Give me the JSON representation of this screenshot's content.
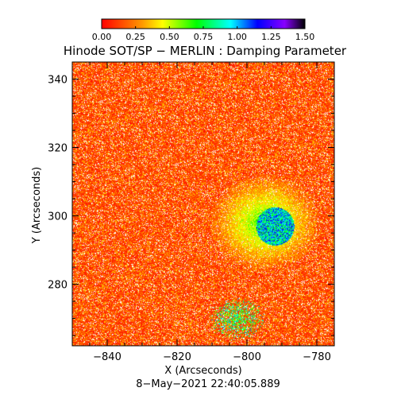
{
  "chart_data": {
    "type": "heatmap",
    "title": "Hinode SOT/SP − MERLIN : Damping Parameter",
    "xlabel": "X (Arcseconds)",
    "ylabel": "Y (Arcseconds)",
    "timestamp": "8−May−2021 22:40:05.889",
    "xlim": [
      -850,
      -775
    ],
    "ylim": [
      262,
      345
    ],
    "x_ticks": [
      -840,
      -820,
      -800,
      -780
    ],
    "x_tick_labels": [
      "−840",
      "−820",
      "−800",
      "−780"
    ],
    "y_ticks": [
      280,
      300,
      320,
      340
    ],
    "y_tick_labels": [
      "280",
      "300",
      "320",
      "340"
    ],
    "colorbar": {
      "range": [
        0.0,
        1.5
      ],
      "ticks": [
        0.0,
        0.25,
        0.5,
        0.75,
        1.0,
        1.25,
        1.5
      ],
      "tick_labels": [
        "0.00",
        "0.25",
        "0.50",
        "0.75",
        "1.00",
        "1.25",
        "1.50"
      ],
      "colormap_stops": [
        {
          "value": 0.0,
          "color": "#ff0000"
        },
        {
          "value": 0.3,
          "color": "#ff9900"
        },
        {
          "value": 0.45,
          "color": "#ffff00"
        },
        {
          "value": 0.7,
          "color": "#00ff00"
        },
        {
          "value": 0.95,
          "color": "#00ffff"
        },
        {
          "value": 1.15,
          "color": "#0000ff"
        },
        {
          "value": 1.35,
          "color": "#8800ff"
        },
        {
          "value": 1.5,
          "color": "#000000"
        }
      ]
    },
    "features": [
      {
        "name": "umbra",
        "x_center": -792,
        "y_center": 297,
        "value": 1.0
      },
      {
        "name": "penumbra",
        "x_center": -795,
        "y_center": 298,
        "value": 0.65
      },
      {
        "name": "pore-cluster",
        "x_center": -803,
        "y_center": 270,
        "value": 0.85
      }
    ]
  }
}
